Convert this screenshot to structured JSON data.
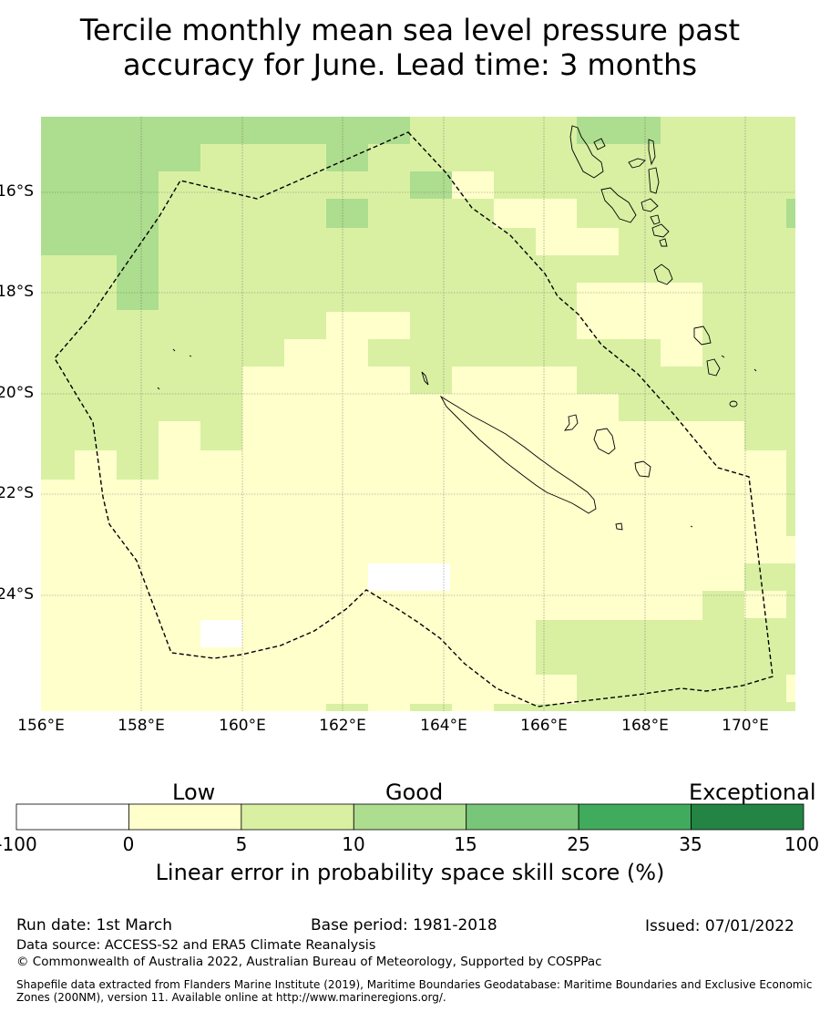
{
  "title": {
    "line1": "Tercile monthly mean sea level pressure past",
    "line2": "accuracy for June. Lead time: 3 months"
  },
  "map": {
    "lon_labels": [
      "156°E",
      "158°E",
      "160°E",
      "162°E",
      "164°E",
      "166°E",
      "168°E",
      "170°E"
    ],
    "lat_labels": [
      "16°S",
      "18°S",
      "20°S",
      "22°S",
      "24°S"
    ],
    "region": "New Caledonia EEZ (dashed boundary)"
  },
  "colorbar": {
    "categories": [
      "Low",
      "Good",
      "Exceptional"
    ],
    "ticks": [
      "-100",
      "0",
      "5",
      "10",
      "15",
      "25",
      "35",
      "100"
    ],
    "colors": [
      "#ffffff",
      "#ffffcc",
      "#d9f0a3",
      "#addd8e",
      "#78c679",
      "#41ab5d",
      "#238443"
    ],
    "title": "Linear error in probability space skill score (%)"
  },
  "footer": {
    "run_date": "Run date: 1st March",
    "base_period": "Base period: 1981-2018",
    "issued": "Issued: 07/01/2022",
    "data_source": "Data source: ACCESS-S2 and ERA5 Climate Reanalysis",
    "copyright": "© Commonwealth of Australia 2022, Australian Bureau of Meteorology, Supported by COSPPac",
    "shapefile": "Shapefile data extracted from Flanders Marine Institute (2019), Maritime Boundaries Geodatabase: Maritime Boundaries and Exclusive Economic Zones (200NM), version 11. Available online at http://www.marineregions.org/."
  }
}
